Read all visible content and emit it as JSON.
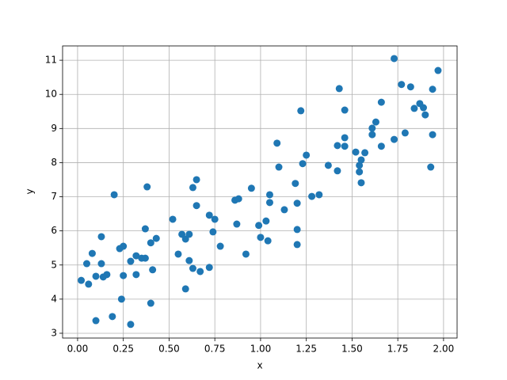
{
  "chart_data": {
    "type": "scatter",
    "xlabel": "x",
    "ylabel": "y",
    "color": "#1f77b4",
    "grid": true,
    "xlim": [
      -0.082,
      2.074
    ],
    "ylim": [
      2.86,
      11.42
    ],
    "xticks": [
      {
        "value": 0,
        "label": "0.00"
      },
      {
        "value": 0.25,
        "label": "0.25"
      },
      {
        "value": 0.5,
        "label": "0.50"
      },
      {
        "value": 0.75,
        "label": "0.75"
      },
      {
        "value": 1,
        "label": "1.00"
      },
      {
        "value": 1.25,
        "label": "1.25"
      },
      {
        "value": 1.5,
        "label": "1.50"
      },
      {
        "value": 1.75,
        "label": "1.75"
      },
      {
        "value": 2,
        "label": "2.00"
      }
    ],
    "yticks": [
      3,
      4,
      5,
      6,
      7,
      8,
      9,
      10,
      11
    ],
    "x": [
      0.02,
      0.05,
      0.06,
      0.08,
      0.1,
      0.1,
      0.13,
      0.13,
      0.14,
      0.16,
      0.19,
      0.2,
      0.23,
      0.24,
      0.25,
      0.25,
      0.29,
      0.29,
      0.32,
      0.32,
      0.35,
      0.37,
      0.37,
      0.38,
      0.4,
      0.4,
      0.41,
      0.43,
      0.52,
      0.55,
      0.57,
      0.59,
      0.59,
      0.61,
      0.61,
      0.63,
      0.63,
      0.65,
      0.65,
      0.67,
      0.72,
      0.72,
      0.74,
      0.75,
      0.78,
      0.86,
      0.87,
      0.88,
      0.92,
      0.95,
      0.99,
      1.0,
      1.03,
      1.04,
      1.05,
      1.05,
      1.09,
      1.1,
      1.13,
      1.19,
      1.2,
      1.2,
      1.2,
      1.22,
      1.23,
      1.25,
      1.28,
      1.32,
      1.37,
      1.42,
      1.42,
      1.43,
      1.46,
      1.46,
      1.46,
      1.52,
      1.54,
      1.54,
      1.55,
      1.55,
      1.57,
      1.61,
      1.61,
      1.63,
      1.66,
      1.66,
      1.73,
      1.73,
      1.77,
      1.79,
      1.82,
      1.84,
      1.87,
      1.89,
      1.9,
      1.93,
      1.94,
      1.94,
      1.97
    ],
    "values": [
      4.55,
      5.04,
      4.44,
      5.34,
      4.67,
      3.37,
      5.83,
      5.04,
      4.65,
      4.72,
      3.49,
      7.06,
      5.48,
      4.0,
      5.55,
      4.69,
      5.11,
      3.26,
      4.72,
      5.27,
      5.2,
      5.2,
      6.06,
      7.29,
      5.65,
      3.88,
      4.86,
      5.78,
      6.34,
      5.32,
      5.9,
      5.76,
      4.3,
      5.9,
      5.13,
      7.27,
      4.9,
      7.5,
      6.74,
      4.81,
      4.93,
      6.46,
      5.97,
      6.34,
      5.55,
      6.9,
      6.2,
      6.94,
      5.32,
      7.25,
      6.16,
      5.81,
      6.29,
      5.71,
      7.06,
      6.83,
      8.57,
      7.87,
      6.62,
      7.39,
      6.04,
      5.6,
      6.81,
      9.52,
      7.97,
      8.22,
      7.01,
      7.06,
      7.92,
      8.5,
      7.76,
      10.17,
      9.54,
      8.73,
      8.48,
      8.31,
      7.92,
      7.73,
      8.08,
      7.41,
      8.29,
      9.01,
      8.82,
      9.19,
      9.77,
      8.48,
      11.05,
      8.68,
      10.29,
      8.87,
      10.22,
      9.59,
      9.73,
      9.61,
      9.4,
      7.87,
      10.15,
      8.82,
      10.7
    ]
  }
}
